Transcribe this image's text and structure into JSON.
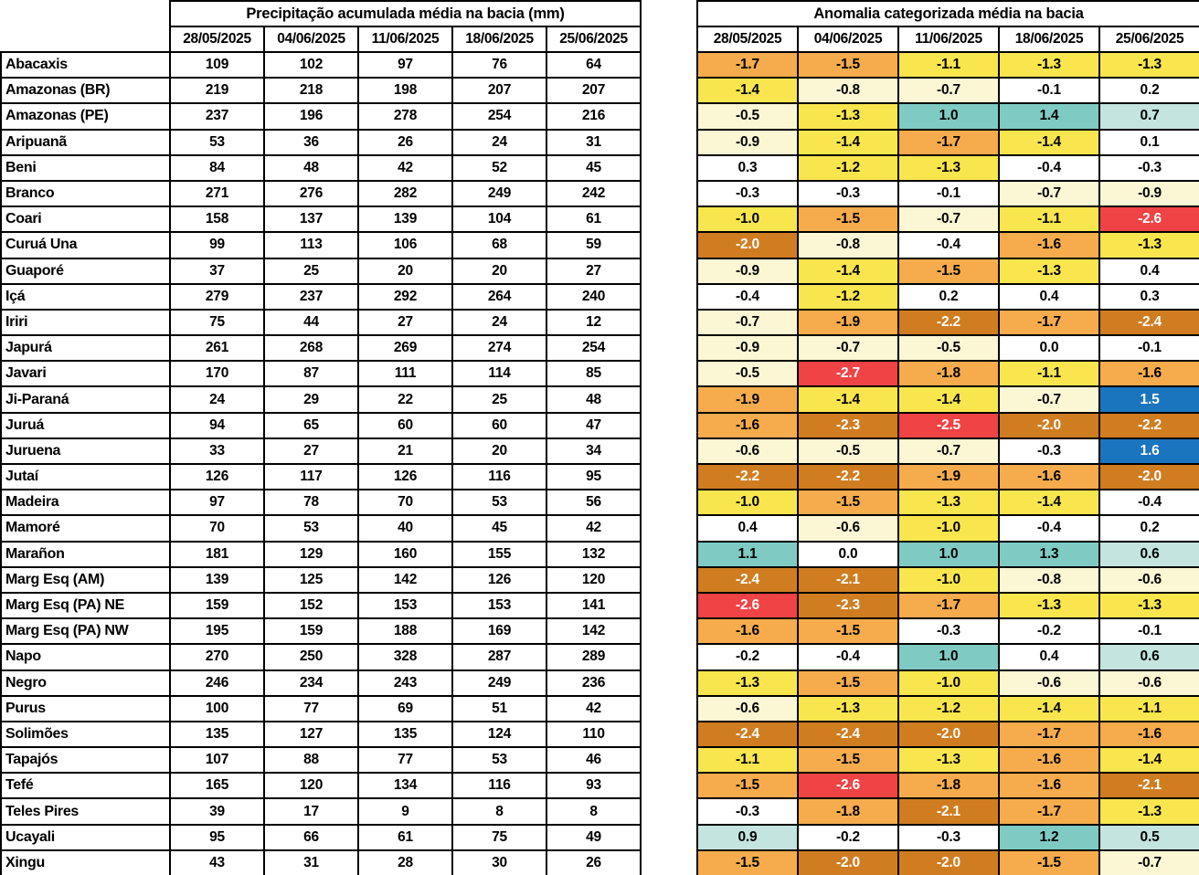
{
  "anomaly_scale": [
    {
      "lte": -2.5,
      "bg": "#F04345",
      "fg": "#FFFFFF",
      "name": "deficit-extreme"
    },
    {
      "lte": -2.0,
      "bg": "#D07D21",
      "fg": "#FFFFFF",
      "name": "deficit-severe"
    },
    {
      "lte": -1.5,
      "bg": "#F6AC4D",
      "fg": "#000000",
      "name": "deficit-strong"
    },
    {
      "lte": -1.0,
      "bg": "#F9E64E",
      "fg": "#000000",
      "name": "deficit-moderate"
    },
    {
      "lte": -0.5,
      "bg": "#FBF7D5",
      "fg": "#000000",
      "name": "deficit-weak"
    },
    {
      "lte": 0.49,
      "bg": "#FFFFFF",
      "fg": "#000000",
      "name": "normal"
    },
    {
      "lte": 0.99,
      "bg": "#C3E4DF",
      "fg": "#000000",
      "name": "excess-weak"
    },
    {
      "lte": 1.49,
      "bg": "#7FCBC4",
      "fg": "#000000",
      "name": "excess-moderate"
    },
    {
      "lte": 99.0,
      "bg": "#1B74BE",
      "fg": "#FFFFFF",
      "name": "excess-strong"
    }
  ],
  "chart_data": [
    {
      "type": "table",
      "title": "Precipitação acumulada média na bacia (mm)",
      "columns": [
        "28/05/2025",
        "04/06/2025",
        "11/06/2025",
        "18/06/2025",
        "25/06/2025"
      ],
      "rows": [
        {
          "basin": "Abacaxis",
          "values": [
            109,
            102,
            97,
            76,
            64
          ]
        },
        {
          "basin": "Amazonas (BR)",
          "values": [
            219,
            218,
            198,
            207,
            207
          ]
        },
        {
          "basin": "Amazonas (PE)",
          "values": [
            237,
            196,
            278,
            254,
            216
          ]
        },
        {
          "basin": "Aripuanã",
          "values": [
            53,
            36,
            26,
            24,
            31
          ]
        },
        {
          "basin": "Beni",
          "values": [
            84,
            48,
            42,
            52,
            45
          ]
        },
        {
          "basin": "Branco",
          "values": [
            271,
            276,
            282,
            249,
            242
          ]
        },
        {
          "basin": "Coari",
          "values": [
            158,
            137,
            139,
            104,
            61
          ]
        },
        {
          "basin": "Curuá Una",
          "values": [
            99,
            113,
            106,
            68,
            59
          ]
        },
        {
          "basin": "Guaporé",
          "values": [
            37,
            25,
            20,
            20,
            27
          ]
        },
        {
          "basin": "Içá",
          "values": [
            279,
            237,
            292,
            264,
            240
          ]
        },
        {
          "basin": "Iriri",
          "values": [
            75,
            44,
            27,
            24,
            12
          ]
        },
        {
          "basin": "Japurá",
          "values": [
            261,
            268,
            269,
            274,
            254
          ]
        },
        {
          "basin": "Javari",
          "values": [
            170,
            87,
            111,
            114,
            85
          ]
        },
        {
          "basin": "Ji-Paraná",
          "values": [
            24,
            29,
            22,
            25,
            48
          ]
        },
        {
          "basin": "Juruá",
          "values": [
            94,
            65,
            60,
            60,
            47
          ]
        },
        {
          "basin": "Juruena",
          "values": [
            33,
            27,
            21,
            20,
            34
          ]
        },
        {
          "basin": "Jutaí",
          "values": [
            126,
            117,
            126,
            116,
            95
          ]
        },
        {
          "basin": "Madeira",
          "values": [
            97,
            78,
            70,
            53,
            56
          ]
        },
        {
          "basin": "Mamoré",
          "values": [
            70,
            53,
            40,
            45,
            42
          ]
        },
        {
          "basin": "Marañon",
          "values": [
            181,
            129,
            160,
            155,
            132
          ]
        },
        {
          "basin": "Marg Esq (AM)",
          "values": [
            139,
            125,
            142,
            126,
            120
          ]
        },
        {
          "basin": "Marg Esq (PA) NE",
          "values": [
            159,
            152,
            153,
            153,
            141
          ]
        },
        {
          "basin": "Marg Esq (PA) NW",
          "values": [
            195,
            159,
            188,
            169,
            142
          ]
        },
        {
          "basin": "Napo",
          "values": [
            270,
            250,
            328,
            287,
            289
          ]
        },
        {
          "basin": "Negro",
          "values": [
            246,
            234,
            243,
            249,
            236
          ]
        },
        {
          "basin": "Purus",
          "values": [
            100,
            77,
            69,
            51,
            42
          ]
        },
        {
          "basin": "Solimões",
          "values": [
            135,
            127,
            135,
            124,
            110
          ]
        },
        {
          "basin": "Tapajós",
          "values": [
            107,
            88,
            77,
            53,
            46
          ]
        },
        {
          "basin": "Tefé",
          "values": [
            165,
            120,
            134,
            116,
            93
          ]
        },
        {
          "basin": "Teles Pires",
          "values": [
            39,
            17,
            9,
            8,
            8
          ]
        },
        {
          "basin": "Ucayali",
          "values": [
            95,
            66,
            61,
            75,
            49
          ]
        },
        {
          "basin": "Xingu",
          "values": [
            43,
            31,
            28,
            30,
            26
          ]
        }
      ]
    },
    {
      "type": "heatmap",
      "title": "Anomalia categorizada média na bacia",
      "columns": [
        "28/05/2025",
        "04/06/2025",
        "11/06/2025",
        "18/06/2025",
        "25/06/2025"
      ],
      "rows": [
        {
          "basin": "Abacaxis",
          "values": [
            "-1.7",
            "-1.5",
            "-1.1",
            "-1.3",
            "-1.3"
          ]
        },
        {
          "basin": "Amazonas (BR)",
          "values": [
            "-1.4",
            "-0.8",
            "-0.7",
            "-0.1",
            "0.2"
          ]
        },
        {
          "basin": "Amazonas (PE)",
          "values": [
            "-0.5",
            "-1.3",
            "1.0",
            "1.4",
            "0.7"
          ]
        },
        {
          "basin": "Aripuanã",
          "values": [
            "-0.9",
            "-1.4",
            "-1.7",
            "-1.4",
            "0.1"
          ]
        },
        {
          "basin": "Beni",
          "values": [
            "0.3",
            "-1.2",
            "-1.3",
            "-0.4",
            "-0.3"
          ]
        },
        {
          "basin": "Branco",
          "values": [
            "-0.3",
            "-0.3",
            "-0.1",
            "-0.7",
            "-0.9"
          ]
        },
        {
          "basin": "Coari",
          "values": [
            "-1.0",
            "-1.5",
            "-0.7",
            "-1.1",
            "-2.6"
          ]
        },
        {
          "basin": "Curuá Una",
          "values": [
            "-2.0",
            "-0.8",
            "-0.4",
            "-1.6",
            "-1.3"
          ]
        },
        {
          "basin": "Guaporé",
          "values": [
            "-0.9",
            "-1.4",
            "-1.5",
            "-1.3",
            "0.4"
          ]
        },
        {
          "basin": "Içá",
          "values": [
            "-0.4",
            "-1.2",
            "0.2",
            "0.4",
            "0.3"
          ]
        },
        {
          "basin": "Iriri",
          "values": [
            "-0.7",
            "-1.9",
            "-2.2",
            "-1.7",
            "-2.4"
          ]
        },
        {
          "basin": "Japurá",
          "values": [
            "-0.9",
            "-0.7",
            "-0.5",
            "0.0",
            "-0.1"
          ]
        },
        {
          "basin": "Javari",
          "values": [
            "-0.5",
            "-2.7",
            "-1.8",
            "-1.1",
            "-1.6"
          ]
        },
        {
          "basin": "Ji-Paraná",
          "values": [
            "-1.9",
            "-1.4",
            "-1.4",
            "-0.7",
            "1.5"
          ]
        },
        {
          "basin": "Juruá",
          "values": [
            "-1.6",
            "-2.3",
            "-2.5",
            "-2.0",
            "-2.2"
          ]
        },
        {
          "basin": "Juruena",
          "values": [
            "-0.6",
            "-0.5",
            "-0.7",
            "-0.3",
            "1.6"
          ]
        },
        {
          "basin": "Jutaí",
          "values": [
            "-2.2",
            "-2.2",
            "-1.9",
            "-1.6",
            "-2.0"
          ]
        },
        {
          "basin": "Madeira",
          "values": [
            "-1.0",
            "-1.5",
            "-1.3",
            "-1.4",
            "-0.4"
          ]
        },
        {
          "basin": "Mamoré",
          "values": [
            "0.4",
            "-0.6",
            "-1.0",
            "-0.4",
            "0.2"
          ]
        },
        {
          "basin": "Marañon",
          "values": [
            "1.1",
            "0.0",
            "1.0",
            "1.3",
            "0.6"
          ]
        },
        {
          "basin": "Marg Esq (AM)",
          "values": [
            "-2.4",
            "-2.1",
            "-1.0",
            "-0.8",
            "-0.6"
          ]
        },
        {
          "basin": "Marg Esq (PA) NE",
          "values": [
            "-2.6",
            "-2.3",
            "-1.7",
            "-1.3",
            "-1.3"
          ]
        },
        {
          "basin": "Marg Esq (PA) NW",
          "values": [
            "-1.6",
            "-1.5",
            "-0.3",
            "-0.2",
            "-0.1"
          ]
        },
        {
          "basin": "Napo",
          "values": [
            "-0.2",
            "-0.4",
            "1.0",
            "0.4",
            "0.6"
          ]
        },
        {
          "basin": "Negro",
          "values": [
            "-1.3",
            "-1.5",
            "-1.0",
            "-0.6",
            "-0.6"
          ]
        },
        {
          "basin": "Purus",
          "values": [
            "-0.6",
            "-1.3",
            "-1.2",
            "-1.4",
            "-1.1"
          ]
        },
        {
          "basin": "Solimões",
          "values": [
            "-2.4",
            "-2.4",
            "-2.0",
            "-1.7",
            "-1.6"
          ]
        },
        {
          "basin": "Tapajós",
          "values": [
            "-1.1",
            "-1.5",
            "-1.3",
            "-1.6",
            "-1.4"
          ]
        },
        {
          "basin": "Tefé",
          "values": [
            "-1.5",
            "-2.6",
            "-1.8",
            "-1.6",
            "-2.1"
          ]
        },
        {
          "basin": "Teles Pires",
          "values": [
            "-0.3",
            "-1.8",
            "-2.1",
            "-1.7",
            "-1.3"
          ]
        },
        {
          "basin": "Ucayali",
          "values": [
            "0.9",
            "-0.2",
            "-0.3",
            "1.2",
            "0.5"
          ]
        },
        {
          "basin": "Xingu",
          "values": [
            "-1.5",
            "-2.0",
            "-2.0",
            "-1.5",
            "-0.7"
          ]
        }
      ]
    }
  ]
}
